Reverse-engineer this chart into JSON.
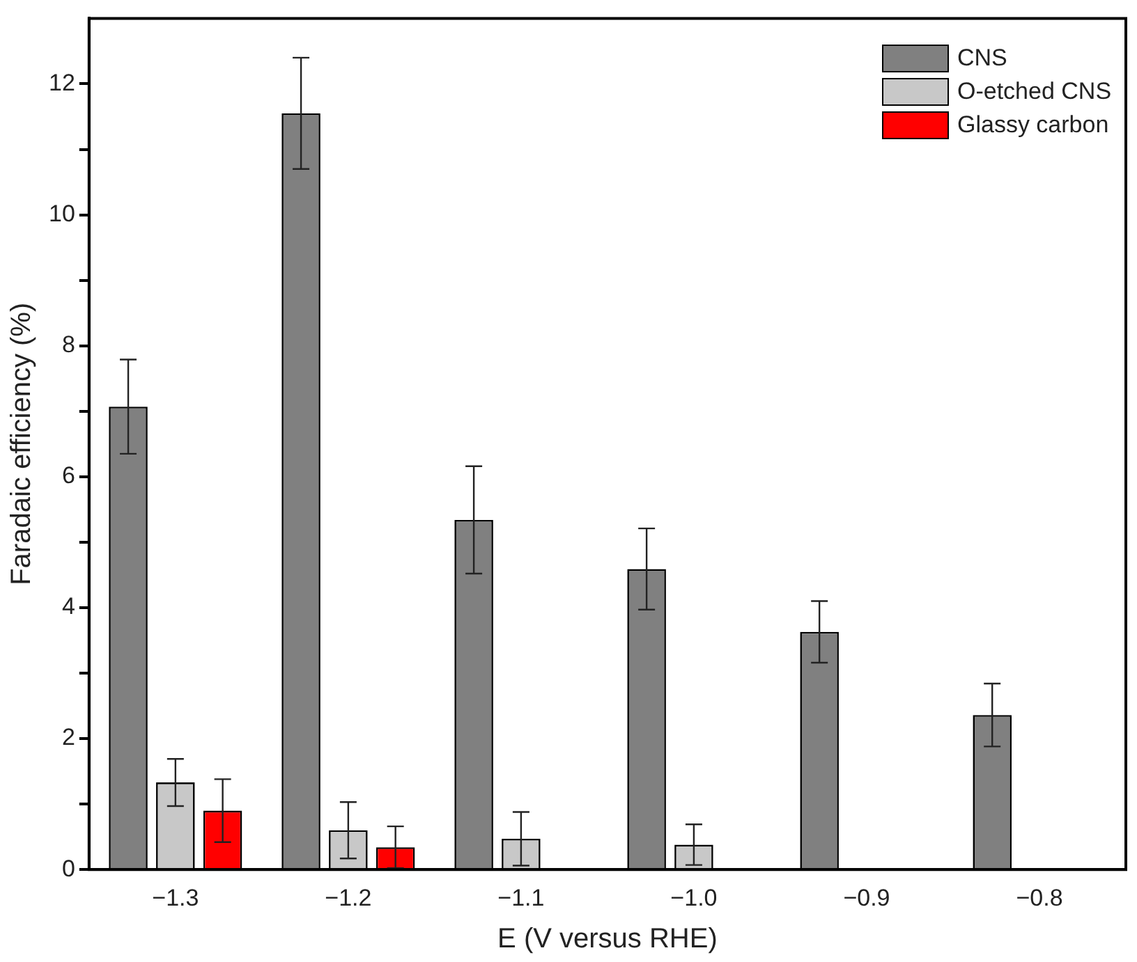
{
  "chart_data": {
    "type": "bar",
    "xlabel": "E (V versus RHE)",
    "ylabel": "Faradaic efficiency (%)",
    "categories": [
      "−1.3",
      "−1.2",
      "−1.1",
      "−1.0",
      "−0.9",
      "−0.8"
    ],
    "series": [
      {
        "name": "CNS",
        "color": "#808080",
        "values": [
          7.07,
          11.55,
          5.34,
          4.59,
          3.63,
          2.36
        ],
        "errors": [
          0.72,
          0.85,
          0.82,
          0.62,
          0.47,
          0.48
        ]
      },
      {
        "name": "O-etched CNS",
        "color": "#c8c8c8",
        "values": [
          1.33,
          0.6,
          0.47,
          0.38,
          null,
          null
        ],
        "errors": [
          0.36,
          0.43,
          0.41,
          0.31,
          null,
          null
        ]
      },
      {
        "name": "Glassy carbon",
        "color": "#ff0000",
        "values": [
          0.9,
          0.34,
          null,
          null,
          null,
          null
        ],
        "errors": [
          0.48,
          0.32,
          null,
          null,
          null,
          null
        ]
      }
    ],
    "ylim": [
      0,
      13
    ],
    "yticks": [
      0,
      {
        "value": 1,
        "label": null
      },
      2,
      {
        "value": 3,
        "label": null
      },
      4,
      {
        "value": 5,
        "label": null
      },
      6,
      {
        "value": 7,
        "label": null
      },
      8,
      {
        "value": 9,
        "label": null
      },
      10,
      {
        "value": 11,
        "label": null
      },
      12
    ],
    "grid": false,
    "legend": "top right"
  }
}
